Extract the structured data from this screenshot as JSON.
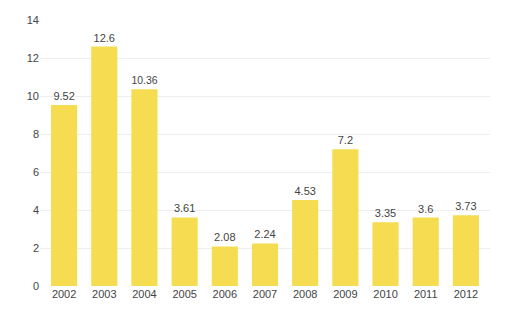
{
  "chart_data": {
    "type": "bar",
    "categories": [
      "2002",
      "2003",
      "2004",
      "2005",
      "2006",
      "2007",
      "2008",
      "2009",
      "2010",
      "2011",
      "2012"
    ],
    "values": [
      9.52,
      12.6,
      10.36,
      3.61,
      2.08,
      2.24,
      4.53,
      7.2,
      3.35,
      3.6,
      3.73
    ],
    "color": "#F5DC50",
    "ylim": [
      0,
      14
    ],
    "yticks": [
      0,
      2,
      4,
      6,
      8,
      10,
      12,
      14
    ],
    "grid": true,
    "data_labels": true
  }
}
